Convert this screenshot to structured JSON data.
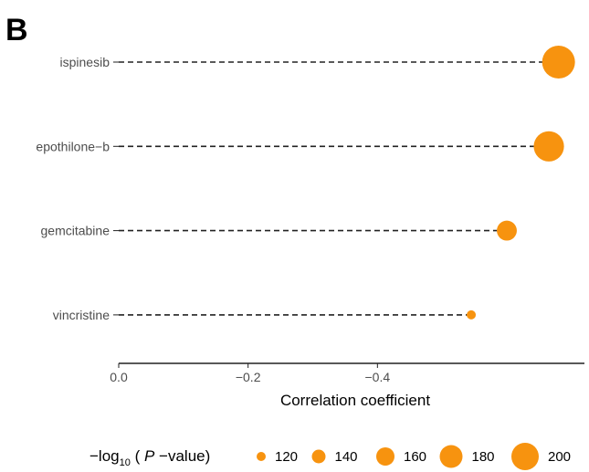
{
  "panel_label": "B",
  "colors": {
    "point": "#F7930F",
    "axis": "#222222",
    "line": "#222222"
  },
  "chart_data": {
    "type": "scatter",
    "subtype": "lollipop",
    "xlabel": "Correlation coefficient",
    "ylabel": "",
    "xlim": [
      0.0,
      -0.72
    ],
    "x_ticks": [
      0.0,
      -0.2,
      -0.4
    ],
    "x_tick_labels": [
      "0.0",
      "−0.2",
      "−0.4"
    ],
    "grid": false,
    "categories": [
      "ispinesib",
      "epothilone−b",
      "gemcitabine",
      "vincristine"
    ],
    "values": [
      -0.68,
      -0.665,
      -0.6,
      -0.545
    ],
    "neg_log10_p": [
      200,
      190,
      150,
      108
    ],
    "legend": {
      "title_prefix": "−log",
      "title_sub": "10",
      "title_open": " ( ",
      "title_italic": "P",
      "title_suffix": " −value)",
      "sizes": [
        120,
        140,
        160,
        180,
        200
      ],
      "labels": [
        "120",
        "140",
        "160",
        "180",
        "200"
      ],
      "placement": "bottom"
    }
  }
}
